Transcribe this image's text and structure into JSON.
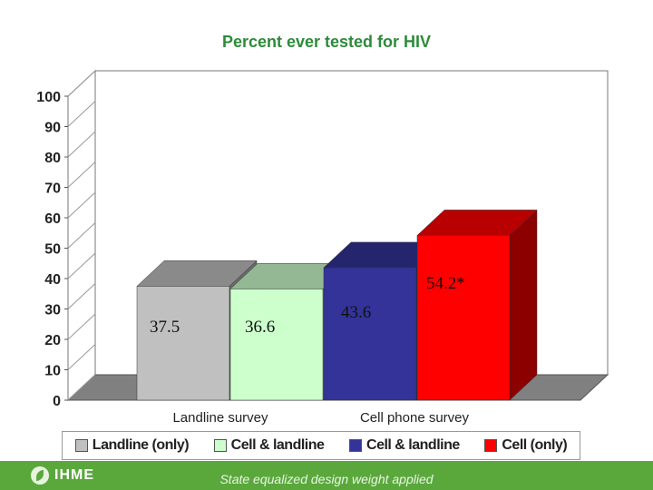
{
  "title": "Percent ever tested for HIV",
  "chart_data": {
    "type": "bar",
    "title": "Percent ever tested for HIV",
    "ylim": [
      0,
      100
    ],
    "yticks": [
      "0",
      "10",
      "20",
      "30",
      "40",
      "50",
      "60",
      "70",
      "80",
      "90",
      "100"
    ],
    "groups": [
      "Landline survey",
      "Cell phone survey"
    ],
    "series": [
      {
        "name": "Landline (only)",
        "group": "Landline survey",
        "value": 37.5,
        "label": "37.5",
        "color": "#c0c0c0"
      },
      {
        "name": "Cell & landline",
        "group": "Landline survey",
        "value": 36.6,
        "label": "36.6",
        "color": "#ccffcc"
      },
      {
        "name": "Cell & landline",
        "group": "Cell phone survey",
        "value": 43.6,
        "label": "43.6",
        "color": "#333399"
      },
      {
        "name": "Cell (only)",
        "group": "Cell phone survey",
        "value": 54.2,
        "label": "54.2*",
        "color": "#ff0000"
      }
    ],
    "style": "3d",
    "legend_position": "bottom"
  },
  "legend": [
    {
      "label": "Landline (only)",
      "color": "#c0c0c0"
    },
    {
      "label": "Cell & landline",
      "color": "#ccffcc"
    },
    {
      "label": "Cell & landline",
      "color": "#333399"
    },
    {
      "label": "Cell (only)",
      "color": "#ff0000"
    }
  ],
  "footer": {
    "logo_text": "IHME",
    "note": "State equalized design weight applied"
  }
}
